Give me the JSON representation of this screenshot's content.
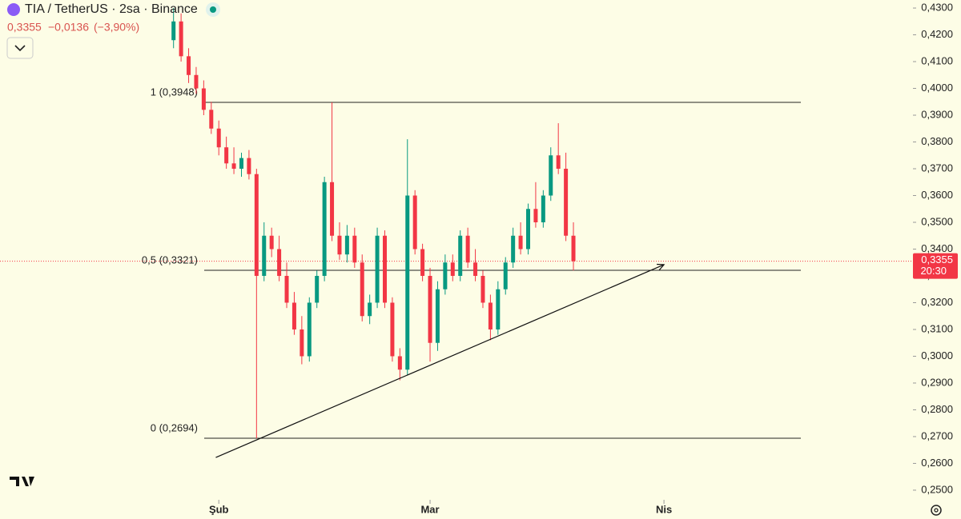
{
  "chart_data": {
    "type": "candlestick",
    "title": "TIA / TetherUS · 2sa · Binance",
    "price_text": "0,3355",
    "change_text": "−0,0136",
    "change_pct_text": "(−3,90%)",
    "x": [
      -6,
      -5,
      -4,
      -3,
      -2,
      -1,
      0,
      1,
      2,
      3,
      4,
      5,
      6,
      7,
      8,
      9,
      10,
      11,
      12,
      13,
      14,
      15,
      16,
      17,
      18,
      19,
      20,
      21,
      22,
      23,
      24,
      25,
      26,
      27,
      28,
      29,
      30,
      31,
      32,
      33,
      34,
      35,
      36,
      37,
      38,
      39,
      40,
      41,
      42,
      43,
      44,
      45,
      46,
      47
    ],
    "open": [
      0.418,
      0.425,
      0.412,
      0.405,
      0.4,
      0.392,
      0.385,
      0.378,
      0.372,
      0.37,
      0.374,
      0.368,
      0.33,
      0.345,
      0.34,
      0.33,
      0.32,
      0.31,
      0.3,
      0.32,
      0.33,
      0.365,
      0.345,
      0.338,
      0.345,
      0.335,
      0.315,
      0.32,
      0.345,
      0.32,
      0.3,
      0.295,
      0.36,
      0.34,
      0.33,
      0.305,
      0.325,
      0.335,
      0.33,
      0.345,
      0.335,
      0.33,
      0.32,
      0.31,
      0.325,
      0.335,
      0.345,
      0.34,
      0.355,
      0.35,
      0.36,
      0.375,
      0.37,
      0.345
    ],
    "high": [
      0.43,
      0.428,
      0.415,
      0.408,
      0.403,
      0.395,
      0.388,
      0.382,
      0.378,
      0.376,
      0.377,
      0.37,
      0.35,
      0.348,
      0.345,
      0.335,
      0.324,
      0.315,
      0.322,
      0.332,
      0.367,
      0.3948,
      0.35,
      0.349,
      0.348,
      0.338,
      0.323,
      0.348,
      0.347,
      0.322,
      0.303,
      0.381,
      0.362,
      0.342,
      0.333,
      0.328,
      0.338,
      0.338,
      0.347,
      0.348,
      0.34,
      0.332,
      0.323,
      0.328,
      0.337,
      0.348,
      0.35,
      0.357,
      0.365,
      0.362,
      0.378,
      0.387,
      0.376,
      0.35
    ],
    "low": [
      0.415,
      0.41,
      0.402,
      0.398,
      0.39,
      0.383,
      0.375,
      0.37,
      0.368,
      0.367,
      0.366,
      0.2694,
      0.328,
      0.337,
      0.328,
      0.318,
      0.308,
      0.297,
      0.298,
      0.318,
      0.328,
      0.343,
      0.336,
      0.335,
      0.333,
      0.313,
      0.312,
      0.318,
      0.318,
      0.298,
      0.291,
      0.293,
      0.338,
      0.328,
      0.298,
      0.302,
      0.323,
      0.328,
      0.328,
      0.333,
      0.328,
      0.318,
      0.306,
      0.308,
      0.323,
      0.333,
      0.338,
      0.338,
      0.348,
      0.348,
      0.358,
      0.368,
      0.343,
      0.332
    ],
    "close": [
      0.425,
      0.412,
      0.405,
      0.4,
      0.392,
      0.385,
      0.378,
      0.372,
      0.37,
      0.374,
      0.368,
      0.33,
      0.345,
      0.34,
      0.33,
      0.32,
      0.31,
      0.3,
      0.32,
      0.33,
      0.365,
      0.345,
      0.338,
      0.345,
      0.335,
      0.315,
      0.32,
      0.345,
      0.32,
      0.3,
      0.295,
      0.36,
      0.34,
      0.33,
      0.305,
      0.325,
      0.335,
      0.33,
      0.345,
      0.335,
      0.33,
      0.32,
      0.31,
      0.325,
      0.335,
      0.345,
      0.34,
      0.355,
      0.35,
      0.36,
      0.375,
      0.37,
      0.345,
      0.3355
    ],
    "up_color": "#089981",
    "down_color": "#f23645",
    "xlim": [
      -29,
      92
    ],
    "ylim": [
      0.2464,
      0.433
    ],
    "xticks": [
      {
        "value": 0,
        "label": "Şub"
      },
      {
        "value": 28,
        "label": "Mar"
      },
      {
        "value": 59,
        "label": "Nis"
      }
    ],
    "yticks": [
      {
        "value": 0.25,
        "label": "0,2500"
      },
      {
        "value": 0.26,
        "label": "0,2600"
      },
      {
        "value": 0.27,
        "label": "0,2700"
      },
      {
        "value": 0.28,
        "label": "0,2800"
      },
      {
        "value": 0.29,
        "label": "0,2900"
      },
      {
        "value": 0.3,
        "label": "0,3000"
      },
      {
        "value": 0.31,
        "label": "0,3100"
      },
      {
        "value": 0.32,
        "label": "0,3200"
      },
      {
        "value": 0.33,
        "label": "0,3300"
      },
      {
        "value": 0.34,
        "label": "0,3400"
      },
      {
        "value": 0.35,
        "label": "0,3500"
      },
      {
        "value": 0.36,
        "label": "0,3600"
      },
      {
        "value": 0.37,
        "label": "0,3700"
      },
      {
        "value": 0.38,
        "label": "0,3800"
      },
      {
        "value": 0.39,
        "label": "0,3900"
      },
      {
        "value": 0.4,
        "label": "0,4000"
      },
      {
        "value": 0.41,
        "label": "0,4100"
      },
      {
        "value": 0.42,
        "label": "0,4200"
      },
      {
        "value": 0.43,
        "label": "0,4300"
      }
    ],
    "levels": [
      {
        "value": 0.3948,
        "label": "1 (0,3948)"
      },
      {
        "value": 0.3321,
        "label": "0,5 (0,3321)"
      },
      {
        "value": 0.2694,
        "label": "0 (0,2694)"
      }
    ],
    "trendline": {
      "x": [
        -0.4,
        59
      ],
      "y": [
        0.2622,
        0.3342
      ]
    },
    "last_price": {
      "value": 0.3355,
      "label": "0,3355"
    },
    "countdown": "20:30"
  }
}
